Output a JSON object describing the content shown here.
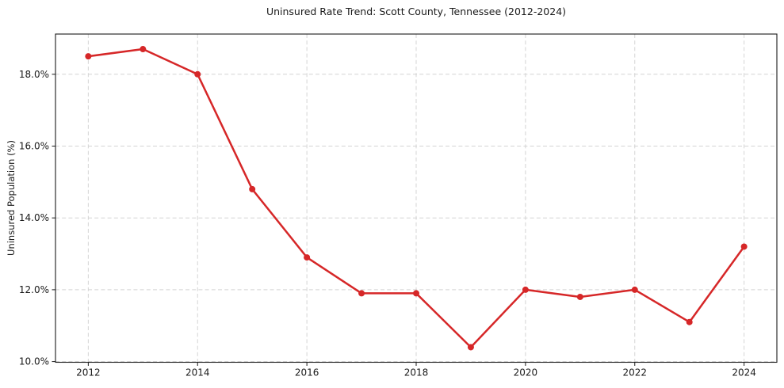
{
  "chart_data": {
    "type": "line",
    "title": "Uninsured Rate Trend: Scott County, Tennessee (2012-2024)",
    "ylabel": "Uninsured Population (%)",
    "xlabel": "",
    "x": [
      2012,
      2013,
      2014,
      2015,
      2016,
      2017,
      2018,
      2019,
      2020,
      2021,
      2022,
      2023,
      2024
    ],
    "values": [
      18.5,
      18.7,
      18.0,
      14.8,
      12.9,
      11.9,
      11.9,
      10.4,
      12.0,
      11.8,
      12.0,
      11.1,
      13.2
    ],
    "x_ticks": [
      2012,
      2014,
      2016,
      2018,
      2020,
      2022,
      2024
    ],
    "x_tick_labels": [
      "2012",
      "2014",
      "2016",
      "2018",
      "2020",
      "2022",
      "2024"
    ],
    "y_ticks": [
      10,
      12,
      14,
      16,
      18
    ],
    "y_tick_labels": [
      "10.0%",
      "12.0%",
      "14.0%",
      "16.0%",
      "18.0%"
    ],
    "xlim": [
      2011.4,
      2024.6
    ],
    "ylim": [
      9.98,
      19.12
    ],
    "grid": true,
    "legend_position": "none",
    "line_color": "#d62728",
    "marker": "circle",
    "grid_color": "#d4d4d4",
    "axis_color": "#1a1a1a"
  }
}
